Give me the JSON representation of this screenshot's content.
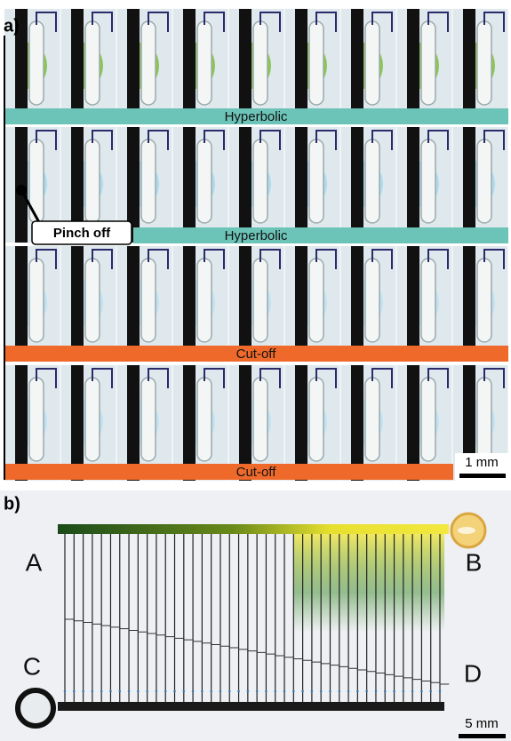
{
  "panel_a": {
    "label": "a)",
    "rows": [
      {
        "label": "Hyperbolic"
      },
      {
        "label": "Hyperbolic",
        "annotation": "Pinch off"
      },
      {
        "label": "Cut-off"
      },
      {
        "label": "Cut-off"
      }
    ],
    "scale_bar": "1 mm"
  },
  "panel_b": {
    "label": "b)",
    "corners": [
      "A",
      "B",
      "C",
      "D"
    ],
    "scale_bar": "5 mm"
  }
}
